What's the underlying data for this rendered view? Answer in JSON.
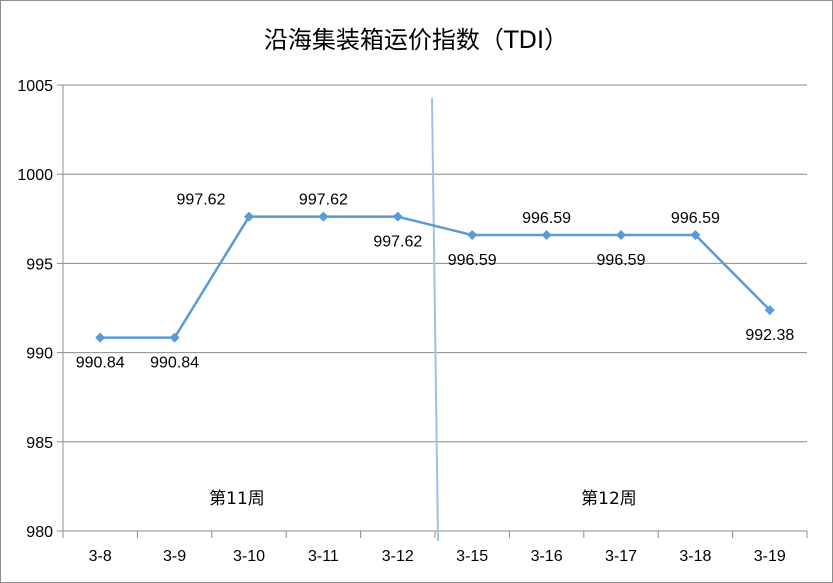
{
  "chart_data": {
    "type": "line",
    "title": "沿海集装箱运价指数（TDI）",
    "xlabel": "",
    "ylabel": "",
    "categories": [
      "3-8",
      "3-9",
      "3-10",
      "3-11",
      "3-12",
      "3-15",
      "3-16",
      "3-17",
      "3-18",
      "3-19"
    ],
    "series": [
      {
        "values": [
          990.84,
          990.84,
          997.62,
          997.62,
          997.62,
          996.59,
          996.59,
          996.59,
          996.59,
          992.38
        ],
        "data_labels": [
          "990.84",
          "990.84",
          "997.62",
          "997.62",
          "997.62",
          "996.59",
          "996.59",
          "996.59",
          "996.59",
          "992.38"
        ],
        "label_positions": [
          "below",
          "below",
          "above",
          "above",
          "below",
          "below",
          "above",
          "below",
          "above",
          "below"
        ],
        "color": "#5b9bd5"
      }
    ],
    "ylim": [
      980,
      1005
    ],
    "yticks": [
      "980",
      "985",
      "990",
      "995",
      "1000",
      "1005"
    ],
    "grid": true,
    "legend": "none",
    "annotations": [
      {
        "text": "第11周",
        "near_category": "3-10"
      },
      {
        "text": "第12周",
        "near_category": "3-17"
      }
    ],
    "divider": {
      "between": [
        "3-12",
        "3-15"
      ],
      "color": "#9dc3e6"
    },
    "colors": {
      "gridline": "#8c8c8c",
      "axis": "#8c8c8c",
      "series": "#5b9bd5"
    }
  }
}
